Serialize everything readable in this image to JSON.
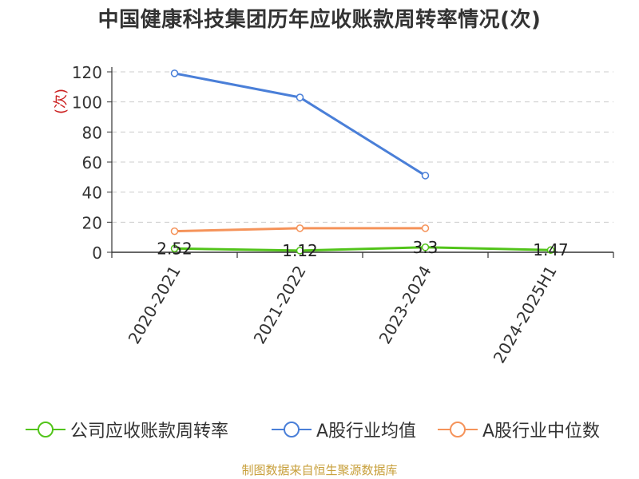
{
  "title": "中国健康科技集团历年应收账款周转率情况(次)",
  "footer": "制图数据来自恒生聚源数据库",
  "chart_data": {
    "type": "line",
    "title": "中国健康科技集团历年应收账款周转率情况(次)",
    "ylabel": "(次)",
    "xlabel": "",
    "categories": [
      "2020-2021",
      "2021-2022",
      "2023-2024",
      "2024-2025H1"
    ],
    "ylim": [
      0,
      120
    ],
    "yticks": [
      0,
      20,
      40,
      60,
      80,
      100,
      120
    ],
    "grid": true,
    "legend_position": "bottom",
    "series": [
      {
        "name": "公司应收账款周转率",
        "color": "#52c41a",
        "values": [
          2.52,
          1.12,
          3.3,
          1.47
        ],
        "labels": [
          "2.52",
          "1.12",
          "3.3",
          "1.47"
        ]
      },
      {
        "name": "A股行业均值",
        "color": "#4a7fd8",
        "values": [
          119,
          103,
          51,
          null
        ]
      },
      {
        "name": "A股行业中位数",
        "color": "#f5935a",
        "values": [
          14,
          16,
          16,
          null
        ]
      }
    ]
  }
}
